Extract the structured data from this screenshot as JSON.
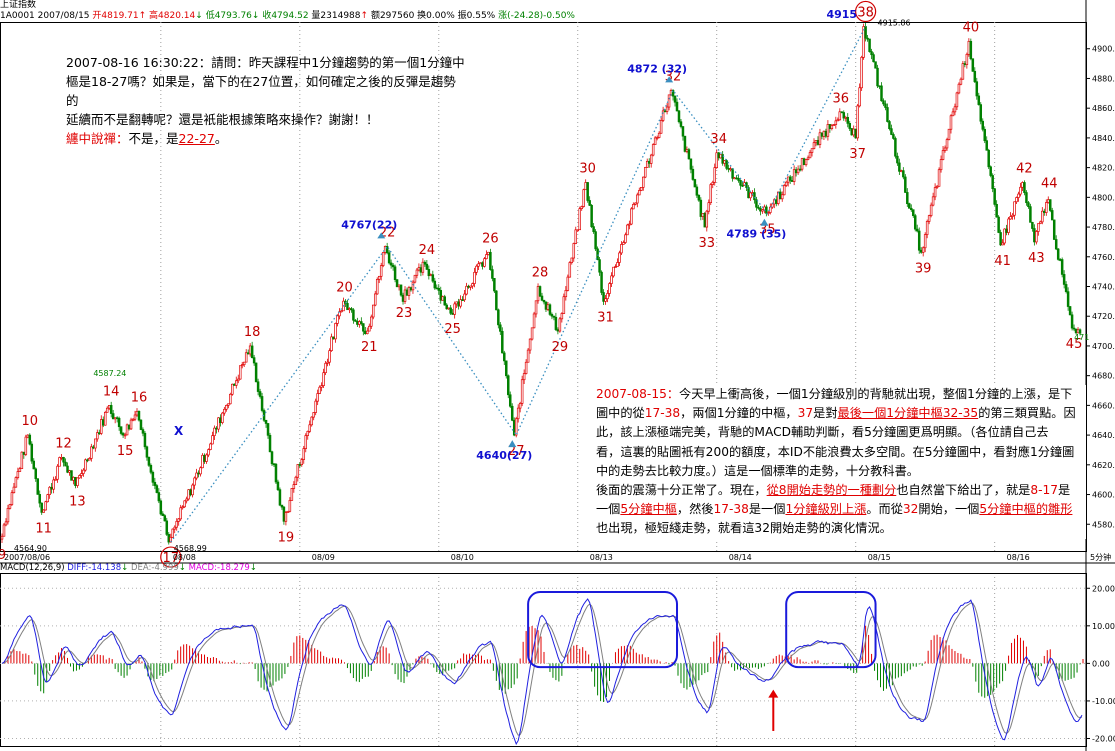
{
  "header": {
    "title": "上证指数",
    "code_date": "1A0001 2007/08/15",
    "open": "开4819.71",
    "high": "高4820.14",
    "low": "低4793.76",
    "close": "收4794.52",
    "volume": "量2314988",
    "amount": "额297560",
    "turnover": "换0.00%",
    "amplitude": "振0.55%",
    "change": "涨(-24.28)-0.50%"
  },
  "note1": {
    "l1": "2007-08-16 16:30:22：請問：昨天課程中1分鐘趨勢的第一個1分鐘中",
    "l2": "樞是18-27嗎？如果是，當下的在27位置，如何確定之後的反彈是趨勢的",
    "l3": "延續而不是翻轉呢？還是衹能根據策略來操作？謝謝！！",
    "l4a": "纏中說禪：",
    "l4b": "不是，是",
    "l4c": "22-27",
    "l4d": "。"
  },
  "note2": {
    "p1a": "2007-08-15：",
    "p1b": "今天早上衝高後，一個1分鐘級別的背馳就出現，整個1分鐘的上漲，是下",
    "p2a": "圖中的從",
    "p2b": "17-38",
    "p2c": "，兩個1分鐘的中樞，",
    "p2d": "37",
    "p2e": "是對",
    "p2f": "最後一個1分鐘中樞32-35",
    "p2g": "的第三類買點。因",
    "p3": "此，該上漲極端完美，背馳的MACD輔助判斷，看5分鐘圖更爲明顯。（各位請自己去",
    "p4": "看，這裏的貼圖衹有200的額度，本ID不能浪費太多空間。在5分鐘圖中，看對應1分鐘圖",
    "p5": "中的走勢去比較力度。）這是一個標準的走勢，十分教科書。",
    "p6a": "後面的震蕩十分正常了。現在，",
    "p6b": "從8開始走勢的一種劃分",
    "p6c": "也自然當下給出了，就是",
    "p6d": "8-17",
    "p6e": "是",
    "p7a": "一個",
    "p7b": "5分鐘中樞",
    "p7c": "，然後",
    "p7d": "17-38",
    "p7e": "是一個",
    "p7f": "1分鐘級別上漲",
    "p7g": "。而從",
    "p7h": "32",
    "p7i": "開始，一個",
    "p7j": "5分鐘中樞的雛形",
    "p8": "也出現，極短綫走勢，就看這32開始走勢的演化情況。"
  },
  "macd_label": {
    "name": "MACD(12,26,9)",
    "diff": "DIFF:-14.138",
    "dea": "DEA:-4.999",
    "macd": "MACD:-18.279"
  },
  "colors": {
    "up": "#e00000",
    "down": "#008000",
    "label": "#c00000",
    "blue_label": "#1010d0",
    "dotted": "#3a8fc0",
    "box": "#1a1adb",
    "diff": "#2020e0",
    "dea": "#808080"
  },
  "chart_data": {
    "type": "candlestick",
    "price_axis": {
      "ticks": [
        4580,
        4600,
        4620,
        4640,
        4660,
        4680,
        4700,
        4720,
        4740,
        4760,
        4780,
        4800,
        4820,
        4840,
        4860,
        4880,
        4900
      ],
      "tick_labels": [
        "4580.00",
        "4600.00",
        "4620.00",
        "4640.00",
        "4660.00",
        "4680.00",
        "4700.00",
        "4720.00",
        "4740.00",
        "4760.00",
        "4780.00",
        "4800.00",
        "4820.00",
        "4840.00",
        "4860.00",
        "4880.00",
        "4900.00"
      ],
      "ylim": [
        4562,
        4918
      ]
    },
    "macd_axis": {
      "ticks": [
        20,
        10,
        0,
        -10,
        -20
      ],
      "tick_labels": [
        "20.00",
        "10.00",
        "0.00",
        "-10.00",
        "-20.00"
      ],
      "ylim": [
        -22,
        23
      ]
    },
    "date_labels": [
      "2007/08/06",
      "08/08",
      "08/09",
      "08/10",
      "08/13",
      "08/14",
      "08/15",
      "08/16"
    ],
    "timeframe": "5分钟",
    "pivots": [
      {
        "label": "9",
        "n": 0,
        "p": 4570
      },
      {
        "label": "10",
        "n": 28,
        "p": 4640
      },
      {
        "label": "11",
        "n": 42,
        "p": 4588
      },
      {
        "label": "12",
        "n": 62,
        "p": 4625
      },
      {
        "label": "13",
        "n": 76,
        "p": 4606
      },
      {
        "label": "14",
        "n": 110,
        "p": 4660
      },
      {
        "label": "15",
        "n": 124,
        "p": 4640
      },
      {
        "label": "16",
        "n": 138,
        "p": 4656
      },
      {
        "label": "17",
        "n": 170,
        "p": 4568
      },
      {
        "label": "18",
        "n": 252,
        "p": 4700
      },
      {
        "label": "19",
        "n": 286,
        "p": 4582
      },
      {
        "label": "20",
        "n": 345,
        "p": 4730
      },
      {
        "label": "21",
        "n": 370,
        "p": 4710
      },
      {
        "label": "22",
        "n": 388,
        "p": 4767
      },
      {
        "label": "23",
        "n": 405,
        "p": 4733
      },
      {
        "label": "24",
        "n": 428,
        "p": 4755
      },
      {
        "label": "25",
        "n": 454,
        "p": 4722
      },
      {
        "label": "26",
        "n": 492,
        "p": 4763
      },
      {
        "label": "27",
        "n": 518,
        "p": 4640
      },
      {
        "label": "28",
        "n": 542,
        "p": 4740
      },
      {
        "label": "29",
        "n": 562,
        "p": 4710
      },
      {
        "label": "30",
        "n": 590,
        "p": 4810
      },
      {
        "label": "31",
        "n": 608,
        "p": 4730
      },
      {
        "label": "32",
        "n": 676,
        "p": 4872
      },
      {
        "label": "33",
        "n": 710,
        "p": 4780
      },
      {
        "label": "34",
        "n": 722,
        "p": 4830
      },
      {
        "label": "35",
        "n": 771,
        "p": 4789
      },
      {
        "label": "36",
        "n": 845,
        "p": 4857
      },
      {
        "label": "37",
        "n": 862,
        "p": 4840
      },
      {
        "label": "38",
        "n": 870,
        "p": 4915
      },
      {
        "label": "39",
        "n": 928,
        "p": 4763
      },
      {
        "label": "40",
        "n": 976,
        "p": 4905
      },
      {
        "label": "41",
        "n": 1008,
        "p": 4768
      },
      {
        "label": "42",
        "n": 1030,
        "p": 4810
      },
      {
        "label": "43",
        "n": 1042,
        "p": 4770
      },
      {
        "label": "44",
        "n": 1055,
        "p": 4800
      },
      {
        "label": "45",
        "n": 1080,
        "p": 4712
      }
    ],
    "price_labels": [
      {
        "text": "4564.90",
        "n": 12,
        "p": 4570
      },
      {
        "text": "4587.24",
        "n": 92,
        "p": 4688
      },
      {
        "text": "4568.99",
        "n": 173,
        "p": 4570
      },
      {
        "text": "4915.86",
        "n": 882,
        "p": 4913
      },
      {
        "text": "471",
        "n": 1080,
        "p": 4712
      }
    ],
    "annotations": [
      {
        "text": "4767(22)",
        "n": 370,
        "p": 4767,
        "type": "top"
      },
      {
        "text": "4640(27)",
        "n": 506,
        "p": 4640,
        "type": "bottom"
      },
      {
        "text": "4872 (32)",
        "n": 660,
        "p": 4872,
        "type": "top"
      },
      {
        "text": "4789 (35)",
        "n": 760,
        "p": 4789,
        "type": "bottom"
      },
      {
        "text": "4915",
        "n": 846,
        "p": 4915,
        "type": "top38"
      }
    ],
    "circled": [
      "17",
      "38"
    ],
    "special_markers": [
      "X"
    ],
    "zigzag": [
      "17",
      "22",
      "27",
      "32",
      "35",
      "38"
    ],
    "macd_boxes": [
      {
        "from": 530,
        "to": 680
      },
      {
        "from": 790,
        "to": 880
      }
    ],
    "macd_arrow_n": 777
  }
}
